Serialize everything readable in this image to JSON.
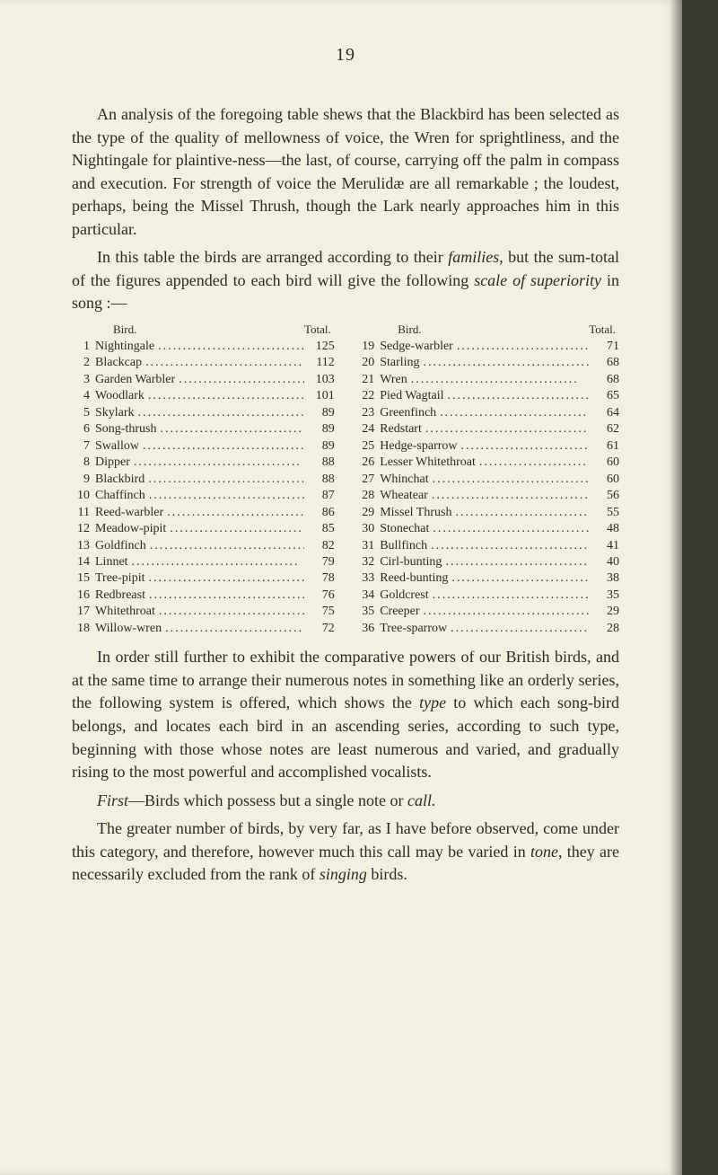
{
  "page_number": "19",
  "p1": "An analysis of the foregoing table shews that the Blackbird has been selected as the type of the quality of mellowness of voice, the Wren for sprightliness, and the Nightingale for plaintive-ness—the last, of course, carrying off the palm in compass and execution. For strength of voice the Merulidæ are all remarkable ; the loudest, perhaps, being the Missel Thrush, though the Lark nearly approaches him in this particular.",
  "p2a": "In this table the birds are arranged according to their ",
  "p2b": "families",
  "p2c": ", but the sum-total of the figures appended to each bird will give the following ",
  "p2d": "scale of superiority",
  "p2e": " in song :—",
  "header_bird": "Bird.",
  "header_total": "Total.",
  "left": [
    {
      "n": "1",
      "name": "Nightingale",
      "v": "125"
    },
    {
      "n": "2",
      "name": "Blackcap",
      "v": "112"
    },
    {
      "n": "3",
      "name": "Garden Warbler",
      "v": "103"
    },
    {
      "n": "4",
      "name": "Woodlark",
      "v": "101"
    },
    {
      "n": "5",
      "name": "Skylark",
      "v": "89"
    },
    {
      "n": "6",
      "name": "Song-thrush",
      "v": "89"
    },
    {
      "n": "7",
      "name": "Swallow",
      "v": "89"
    },
    {
      "n": "8",
      "name": "Dipper",
      "v": "88"
    },
    {
      "n": "9",
      "name": "Blackbird",
      "v": "88"
    },
    {
      "n": "10",
      "name": "Chaffinch",
      "v": "87"
    },
    {
      "n": "11",
      "name": "Reed-warbler",
      "v": "86"
    },
    {
      "n": "12",
      "name": "Meadow-pipit",
      "v": "85"
    },
    {
      "n": "13",
      "name": "Goldfinch",
      "v": "82"
    },
    {
      "n": "14",
      "name": "Linnet",
      "v": "79"
    },
    {
      "n": "15",
      "name": "Tree-pipit",
      "v": "78"
    },
    {
      "n": "16",
      "name": "Redbreast",
      "v": "76"
    },
    {
      "n": "17",
      "name": "Whitethroat",
      "v": "75"
    },
    {
      "n": "18",
      "name": "Willow-wren",
      "v": "72"
    }
  ],
  "right": [
    {
      "n": "19",
      "name": "Sedge-warbler",
      "v": "71"
    },
    {
      "n": "20",
      "name": "Starling",
      "v": "68"
    },
    {
      "n": "21",
      "name": "Wren",
      "v": "68"
    },
    {
      "n": "22",
      "name": "Pied Wagtail",
      "v": "65"
    },
    {
      "n": "23",
      "name": "Greenfinch",
      "v": "64"
    },
    {
      "n": "24",
      "name": "Redstart",
      "v": "62"
    },
    {
      "n": "25",
      "name": "Hedge-sparrow",
      "v": "61"
    },
    {
      "n": "26",
      "name": "Lesser Whitethroat",
      "v": "60"
    },
    {
      "n": "27",
      "name": "Whinchat",
      "v": "60"
    },
    {
      "n": "28",
      "name": "Wheatear",
      "v": "56"
    },
    {
      "n": "29",
      "name": "Missel Thrush",
      "v": "55"
    },
    {
      "n": "30",
      "name": "Stonechat",
      "v": "48"
    },
    {
      "n": "31",
      "name": "Bullfinch",
      "v": "41"
    },
    {
      "n": "32",
      "name": "Cirl-bunting",
      "v": "40"
    },
    {
      "n": "33",
      "name": "Reed-bunting",
      "v": "38"
    },
    {
      "n": "34",
      "name": "Goldcrest",
      "v": "35"
    },
    {
      "n": "35",
      "name": "Creeper",
      "v": "29"
    },
    {
      "n": "36",
      "name": "Tree-sparrow",
      "v": "28"
    }
  ],
  "p3a": "In order still further to exhibit the comparative powers of our British birds, and at the same time to arrange their numerous notes in something like an orderly series, the following system is offered, which shows the ",
  "p3b": "type",
  "p3c": " to which each song-bird belongs, and locates each bird in an ascending series, according to such type, beginning with those whose notes are least numerous and varied, and gradually rising to the most powerful and accomplished vocalists.",
  "p4a": "First",
  "p4b": "—Birds which possess but a single note or ",
  "p4c": "call.",
  "p5a": "The greater number of birds, by very far, as I have before observed, come under this category, and therefore, however much this call may be varied in ",
  "p5b": "tone",
  "p5c": ", they are necessarily excluded from the rank of ",
  "p5d": "singing",
  "p5e": " birds."
}
